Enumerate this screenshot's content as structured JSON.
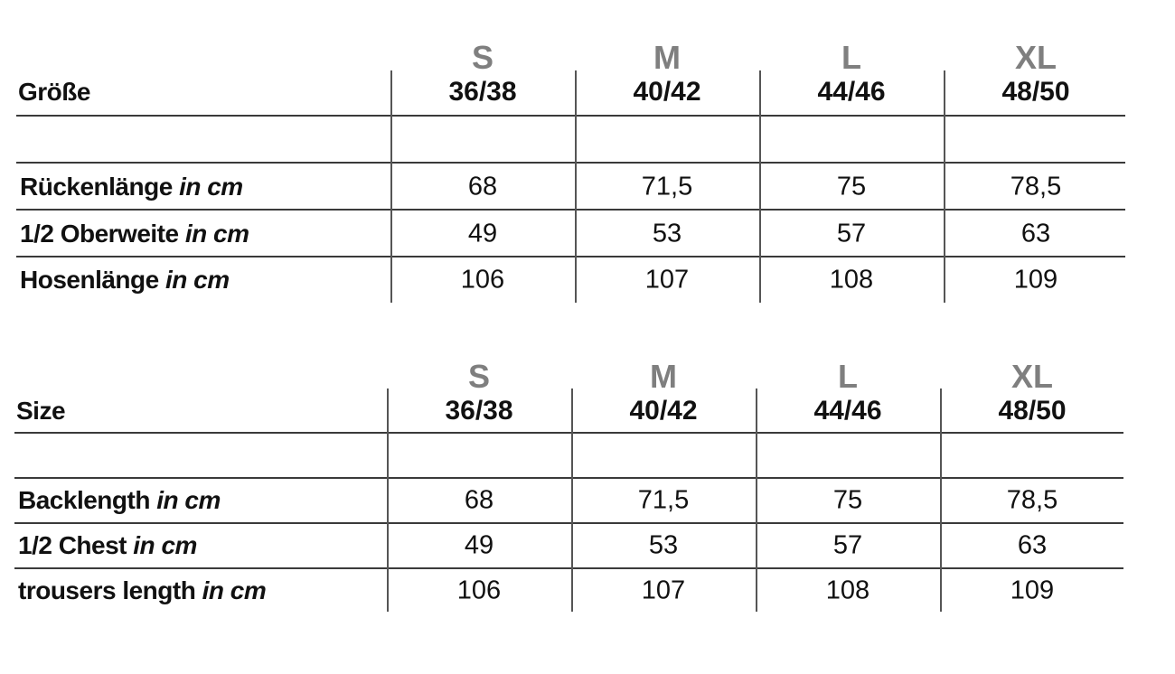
{
  "tables": [
    {
      "header_label": "Größe",
      "sizes": [
        {
          "letter": "S",
          "numbers": "36/38"
        },
        {
          "letter": "M",
          "numbers": "40/42"
        },
        {
          "letter": "L",
          "numbers": "44/46"
        },
        {
          "letter": "XL",
          "numbers": "48/50"
        }
      ],
      "rows": [
        {
          "label": "Rückenlänge",
          "unit": "in cm",
          "values": [
            "68",
            "71,5",
            "75",
            "78,5"
          ]
        },
        {
          "label": "1/2 Oberweite",
          "unit": "in cm",
          "values": [
            "49",
            "53",
            "57",
            "63"
          ]
        },
        {
          "label": "Hosenlänge",
          "unit": "in cm",
          "values": [
            "106",
            "107",
            "108",
            "109"
          ]
        }
      ]
    },
    {
      "header_label": "Size",
      "sizes": [
        {
          "letter": "S",
          "numbers": "36/38"
        },
        {
          "letter": "M",
          "numbers": "40/42"
        },
        {
          "letter": "L",
          "numbers": "44/46"
        },
        {
          "letter": "XL",
          "numbers": "48/50"
        }
      ],
      "rows": [
        {
          "label": "Backlength",
          "unit": "in cm",
          "values": [
            "68",
            "71,5",
            "75",
            "78,5"
          ]
        },
        {
          "label": "1/2 Chest",
          "unit": "in cm",
          "values": [
            "49",
            "53",
            "57",
            "63"
          ]
        },
        {
          "label": "trousers length",
          "unit": "in cm",
          "values": [
            "106",
            "107",
            "108",
            "109"
          ]
        }
      ]
    }
  ]
}
